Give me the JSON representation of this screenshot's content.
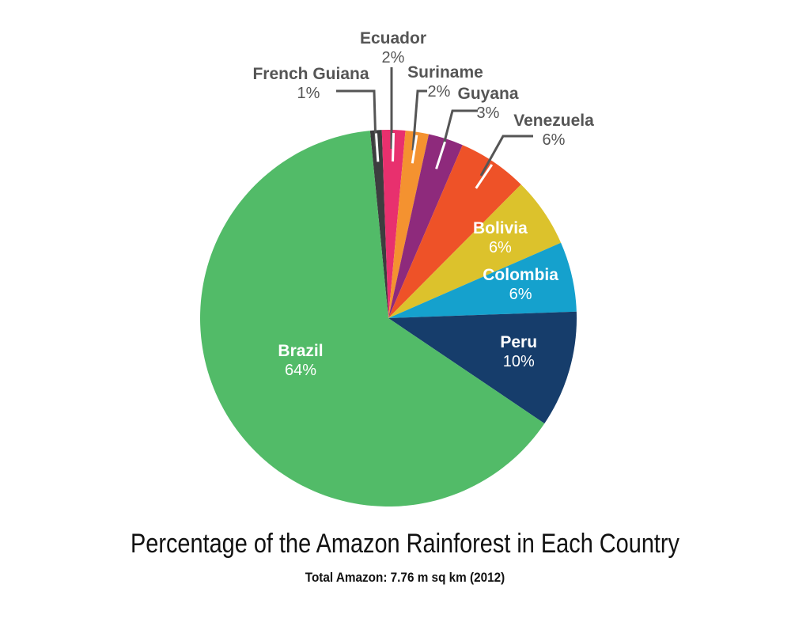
{
  "chart_data": {
    "type": "pie",
    "title": "Percentage of the Amazon Rainforest in Each Country",
    "subtitle": "Total Amazon: 7.76 m sq km (2012)",
    "slices": [
      {
        "label": "French Guiana",
        "value": 1,
        "pct_label": "1%",
        "color": "#3d3d3f",
        "label_pos": "outside"
      },
      {
        "label": "Ecuador",
        "value": 2,
        "pct_label": "2%",
        "color": "#e8306e",
        "label_pos": "outside"
      },
      {
        "label": "Suriname",
        "value": 2,
        "pct_label": "2%",
        "color": "#f49230",
        "label_pos": "outside"
      },
      {
        "label": "Guyana",
        "value": 3,
        "pct_label": "3%",
        "color": "#8e2a7c",
        "label_pos": "outside"
      },
      {
        "label": "Venezuela",
        "value": 6,
        "pct_label": "6%",
        "color": "#ee5228",
        "label_pos": "outside"
      },
      {
        "label": "Bolivia",
        "value": 6,
        "pct_label": "6%",
        "color": "#dcc22c",
        "label_pos": "inside"
      },
      {
        "label": "Colombia",
        "value": 6,
        "pct_label": "6%",
        "color": "#15a1cd",
        "label_pos": "inside"
      },
      {
        "label": "Peru",
        "value": 10,
        "pct_label": "10%",
        "color": "#163d6b",
        "label_pos": "inside"
      },
      {
        "label": "Brazil",
        "value": 64,
        "pct_label": "64%",
        "color": "#52bb68",
        "label_pos": "inside"
      }
    ]
  }
}
